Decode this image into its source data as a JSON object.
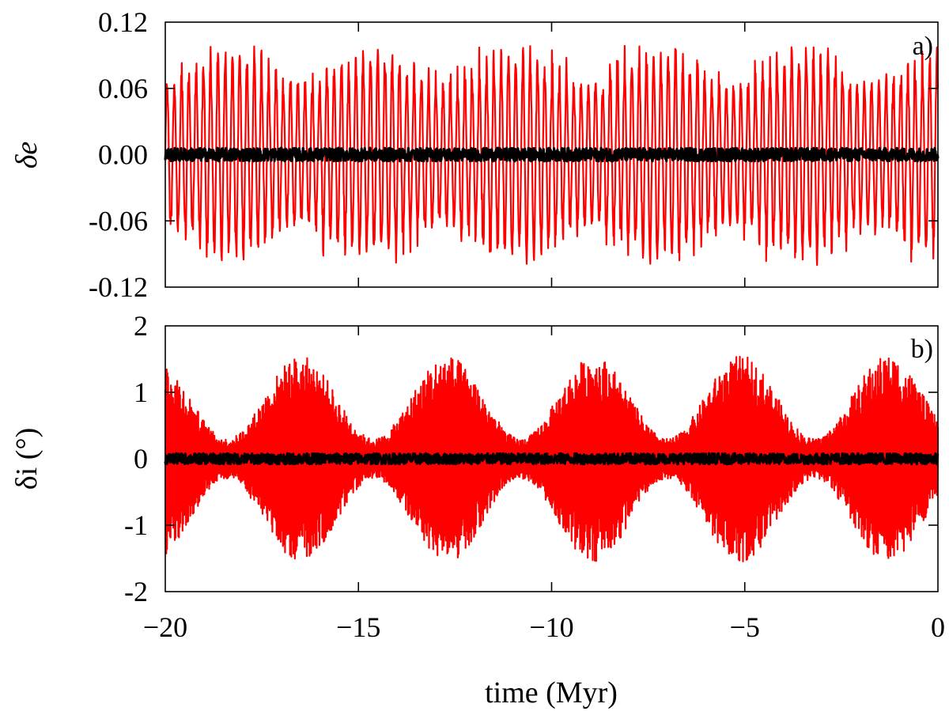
{
  "chart_data": [
    {
      "type": "line",
      "panel_label": "a)",
      "ylabel": "δe",
      "xlabel": "",
      "xlim": [
        -20,
        0
      ],
      "ylim": [
        -0.12,
        0.12
      ],
      "yticks": [
        -0.12,
        -0.06,
        0.0,
        0.06,
        0.12
      ],
      "ytick_labels": [
        "-0.12",
        "-0.06",
        "0.00",
        "0.06",
        "0.12"
      ],
      "xticks": [
        -20,
        -15,
        -10,
        -5,
        0
      ],
      "series": [
        {
          "name": "red",
          "color": "#ff0000",
          "kind": "fast oscillation",
          "period_myr": 0.188,
          "amplitude_min": 0.065,
          "amplitude_max": 0.102,
          "offset": 0.0
        },
        {
          "name": "black",
          "color": "#000000",
          "kind": "noise band",
          "amplitude": 0.006,
          "offset": 0.0
        }
      ]
    },
    {
      "type": "line",
      "panel_label": "b)",
      "ylabel": "δi (°)",
      "xlabel": "time (Myr)",
      "xlim": [
        -20,
        0
      ],
      "ylim": [
        -2,
        2
      ],
      "yticks": [
        -2,
        -1,
        0,
        1,
        2
      ],
      "ytick_labels": [
        "-2",
        "-1",
        "0",
        "1",
        "2"
      ],
      "xticks": [
        -20,
        -15,
        -10,
        -5,
        0
      ],
      "xtick_labels": [
        "−20",
        "−15",
        "−10",
        "−5",
        "0"
      ],
      "series": [
        {
          "name": "red",
          "color": "#ff0000",
          "kind": "modulated oscillation",
          "envelope_period_myr": 3.8,
          "envelope_peak_times": [
            -16.5,
            -12.7,
            -8.9,
            -5.2,
            -1.9
          ],
          "amplitude_min": 0.3,
          "amplitude_max": 1.55,
          "first_peak_amplitude": 1.45
        },
        {
          "name": "black",
          "color": "#000000",
          "kind": "noise band",
          "amplitude": 0.08,
          "offset": 0.0
        }
      ]
    }
  ]
}
